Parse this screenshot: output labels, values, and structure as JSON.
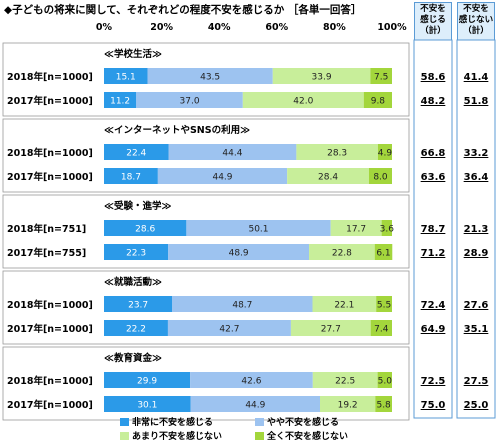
{
  "title": "◆子どもの将来に関して、それぞれどの程度不安を感じるか",
  "answer_type": "［各単一回答］",
  "columns": {
    "anxious_total": "不安を\n感じる\n（計）",
    "not_anxious_total": "不安を\n感じない\n（計）"
  },
  "colors": {
    "very_anxious": "#2b9ae8",
    "somewhat_anxious": "#9dc3f0",
    "not_very_anxious": "#c8ee9a",
    "not_at_all_anxious": "#a3d63c",
    "column_bg": "#ddeefb",
    "column_border": "#5b9bd5",
    "section_border": "#999999"
  },
  "chart_data": {
    "type": "bar",
    "orientation": "horizontal",
    "stacked": true,
    "xlim": [
      0,
      100
    ],
    "x_ticks": [
      "0%",
      "20%",
      "40%",
      "60%",
      "80%",
      "100%"
    ],
    "legend": [
      "非常に不安を感じる",
      "やや不安を感じる",
      "あまり不安を感じない",
      "全く不安を感じない"
    ],
    "legend_position": "bottom",
    "groups": [
      {
        "label": "≪学校生活≫",
        "rows": [
          {
            "label": "2018年[n=1000]",
            "values": [
              15.1,
              43.5,
              33.9,
              7.5
            ],
            "anxious_total": "58.6",
            "not_anxious_total": "41.4"
          },
          {
            "label": "2017年[n=1000]",
            "values": [
              11.2,
              37.0,
              42.0,
              9.8
            ],
            "anxious_total": "48.2",
            "not_anxious_total": "51.8"
          }
        ]
      },
      {
        "label": "≪インターネットやSNSの利用≫",
        "rows": [
          {
            "label": "2018年[n=1000]",
            "values": [
              22.4,
              44.4,
              28.3,
              4.9
            ],
            "anxious_total": "66.8",
            "not_anxious_total": "33.2"
          },
          {
            "label": "2017年[n=1000]",
            "values": [
              18.7,
              44.9,
              28.4,
              8.0
            ],
            "anxious_total": "63.6",
            "not_anxious_total": "36.4"
          }
        ]
      },
      {
        "label": "≪受験・進学≫",
        "rows": [
          {
            "label": "2018年[n=751]",
            "values": [
              28.6,
              50.1,
              17.7,
              3.6
            ],
            "anxious_total": "78.7",
            "not_anxious_total": "21.3"
          },
          {
            "label": "2017年[n=755]",
            "values": [
              22.3,
              48.9,
              22.8,
              6.1
            ],
            "anxious_total": "71.2",
            "not_anxious_total": "28.9"
          }
        ]
      },
      {
        "label": "≪就職活動≫",
        "rows": [
          {
            "label": "2018年[n=1000]",
            "values": [
              23.7,
              48.7,
              22.1,
              5.5
            ],
            "anxious_total": "72.4",
            "not_anxious_total": "27.6"
          },
          {
            "label": "2017年[n=1000]",
            "values": [
              22.2,
              42.7,
              27.7,
              7.4
            ],
            "anxious_total": "64.9",
            "not_anxious_total": "35.1"
          }
        ]
      },
      {
        "label": "≪教育資金≫",
        "rows": [
          {
            "label": "2018年[n=1000]",
            "values": [
              29.9,
              42.6,
              22.5,
              5.0
            ],
            "anxious_total": "72.5",
            "not_anxious_total": "27.5"
          },
          {
            "label": "2017年[n=1000]",
            "values": [
              30.1,
              44.9,
              19.2,
              5.8
            ],
            "anxious_total": "75.0",
            "not_anxious_total": "25.0"
          }
        ]
      }
    ]
  }
}
